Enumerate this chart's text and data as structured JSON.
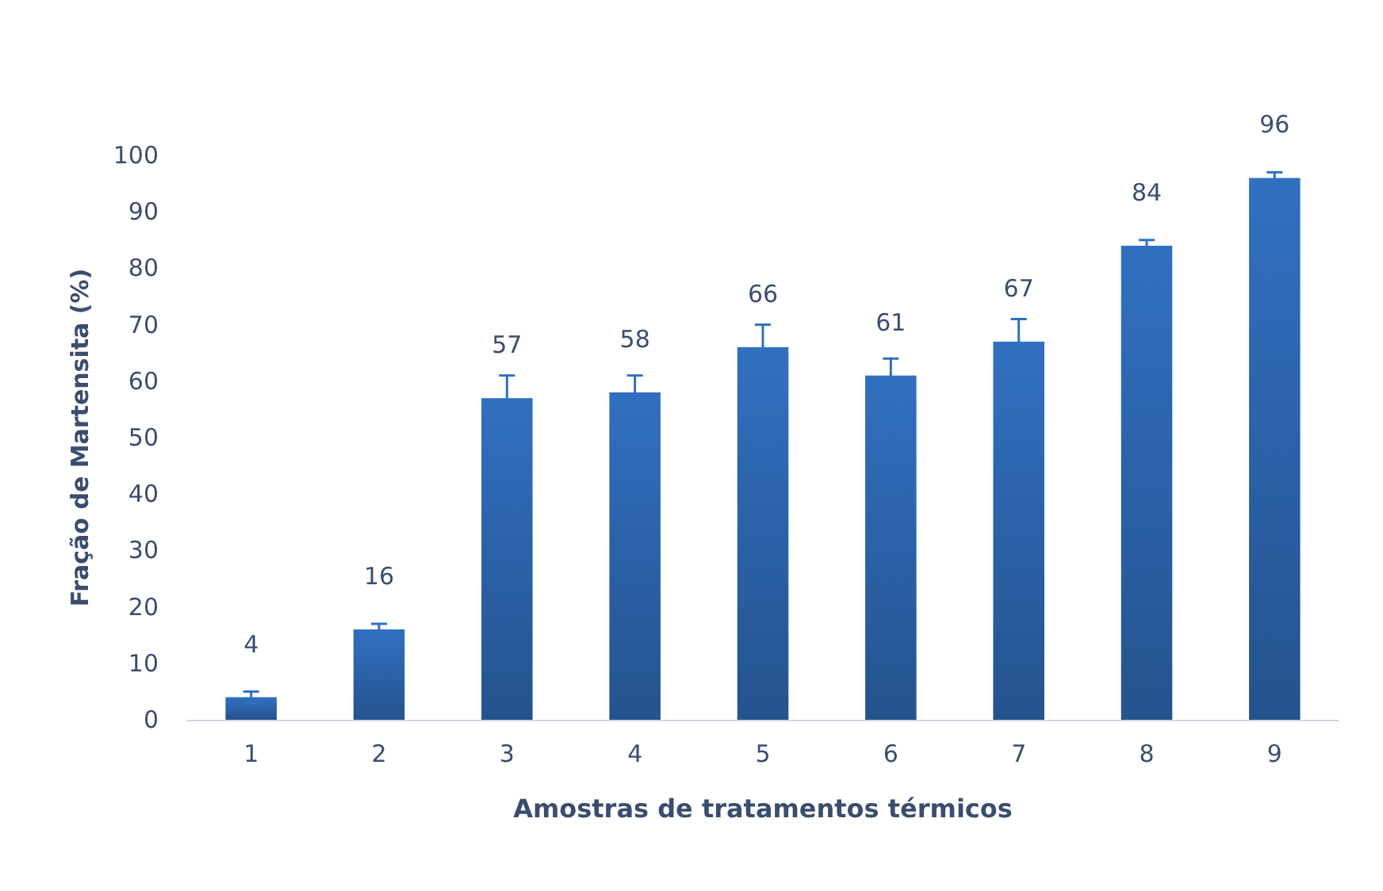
{
  "chart_data": {
    "type": "bar",
    "xlabel": "Amostras de tratamentos térmicos",
    "ylabel": "Fração de Martensita (%)",
    "categories": [
      "1",
      "2",
      "3",
      "4",
      "5",
      "6",
      "7",
      "8",
      "9"
    ],
    "values": [
      4,
      16,
      57,
      58,
      66,
      61,
      67,
      84,
      96
    ],
    "errors": [
      1,
      1,
      4,
      3,
      4,
      3,
      4,
      1,
      1
    ],
    "color": "#3170c0",
    "ylim": [
      0,
      100
    ],
    "yticks": [
      0,
      10,
      20,
      30,
      40,
      50,
      60,
      70,
      80,
      90,
      100
    ],
    "grid": false,
    "data_labels": true
  }
}
